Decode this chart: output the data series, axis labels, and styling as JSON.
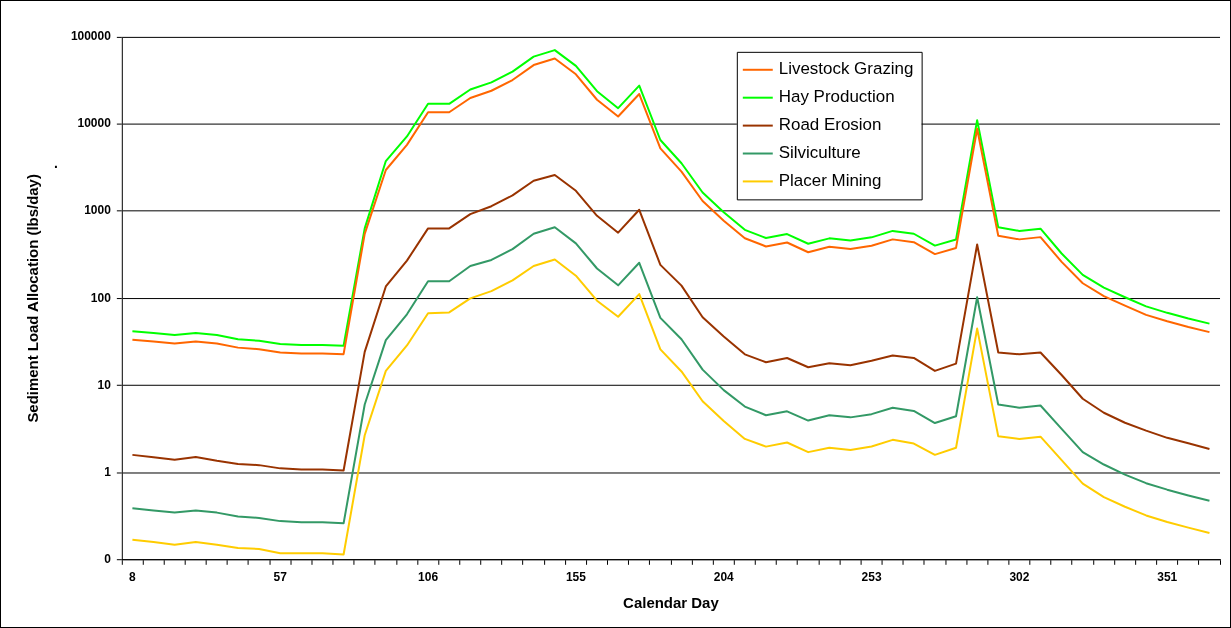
{
  "chart_data": {
    "type": "line",
    "xlabel": "Calendar Day",
    "ylabel": "Sediment Load Allocation (lbs/day)",
    "annotations": [
      "."
    ],
    "categories": [
      "8",
      null,
      null,
      null,
      null,
      null,
      null,
      "57",
      null,
      null,
      null,
      null,
      null,
      null,
      "106",
      null,
      null,
      null,
      null,
      null,
      null,
      "155",
      null,
      null,
      null,
      null,
      null,
      null,
      "204",
      null,
      null,
      null,
      null,
      null,
      null,
      "253",
      null,
      null,
      null,
      null,
      null,
      null,
      "302",
      null,
      null,
      null,
      null,
      null,
      null,
      "351",
      null,
      null
    ],
    "series": [
      {
        "name": "Livestock Grazing",
        "color": "#ff6600",
        "values": [
          33.6,
          32,
          30.4,
          32,
          30.4,
          27.2,
          26.1,
          23.9,
          23.3,
          23.3,
          22.9,
          550,
          2970,
          5770,
          13650,
          13650,
          19900,
          24100,
          32000,
          47500,
          56400,
          37200,
          19000,
          12200,
          22100,
          5250,
          2840,
          1310,
          778,
          489,
          394,
          437,
          338,
          390,
          368,
          401,
          475,
          441,
          322,
          379,
          8830,
          522,
          475,
          504,
          262,
          149,
          106,
          82.4,
          64.6,
          54.6,
          46.9,
          41
        ]
      },
      {
        "name": "Hay Production",
        "color": "#00ff00",
        "values": [
          42,
          40,
          38,
          40,
          38,
          34,
          32.6,
          29.9,
          29.1,
          29.1,
          28.6,
          635,
          3760,
          7210,
          17060,
          17060,
          24900,
          30100,
          40000,
          59400,
          70500,
          46500,
          23800,
          15200,
          27600,
          6560,
          3550,
          1640,
          973,
          611,
          492,
          546,
          423,
          488,
          460,
          501,
          594,
          551,
          403,
          474,
          11040,
          653,
          594,
          630,
          327,
          186,
          133,
          103,
          80.8,
          68.2,
          58.6,
          51.3
        ]
      },
      {
        "name": "Road Erosion",
        "color": "#993300",
        "values": [
          1.6,
          1.5,
          1.41,
          1.51,
          1.37,
          1.26,
          1.22,
          1.12,
          1.09,
          1.09,
          1.06,
          24.3,
          137,
          271,
          635,
          635,
          927,
          1140,
          1517,
          2235,
          2600,
          1714,
          885,
          567,
          1038,
          242,
          140,
          60.8,
          36.5,
          22.8,
          18.5,
          20.7,
          16.2,
          18,
          17.1,
          19.2,
          22.1,
          20.7,
          14.7,
          17.8,
          415,
          23.9,
          22.8,
          23.9,
          13.2,
          7.05,
          4.87,
          3.74,
          3.04,
          2.51,
          2.18,
          1.87
        ]
      },
      {
        "name": "Silviculture",
        "color": "#339966",
        "values": [
          0.39,
          0.369,
          0.348,
          0.369,
          0.348,
          0.314,
          0.302,
          0.278,
          0.27,
          0.27,
          0.262,
          6.06,
          33.2,
          65.6,
          157,
          157,
          235,
          276,
          367,
          551,
          653,
          427,
          220,
          141,
          256,
          59.7,
          33.9,
          15.2,
          8.85,
          5.73,
          4.56,
          5.06,
          3.96,
          4.56,
          4.31,
          4.69,
          5.56,
          5.11,
          3.71,
          4.44,
          103,
          6.06,
          5.56,
          5.89,
          3.18,
          1.72,
          1.24,
          0.949,
          0.757,
          0.638,
          0.548,
          0.476
        ]
      },
      {
        "name": "Placer Mining",
        "color": "#ffcc00",
        "values": [
          0.17,
          0.16,
          0.149,
          0.16,
          0.149,
          0.137,
          0.133,
          0.119,
          0.119,
          0.119,
          0.115,
          2.69,
          14.7,
          28.8,
          67.6,
          68.9,
          100,
          121,
          161,
          235,
          279,
          182,
          94,
          61.5,
          112,
          26,
          14.5,
          6.59,
          3.92,
          2.44,
          1.99,
          2.22,
          1.72,
          1.93,
          1.82,
          2,
          2.38,
          2.16,
          1.6,
          1.93,
          45,
          2.61,
          2.44,
          2.59,
          1.39,
          0.75,
          0.524,
          0.406,
          0.323,
          0.272,
          0.234,
          0.203
        ]
      }
    ],
    "ylim": [
      0.1,
      100000
    ],
    "yticks": [
      {
        "value": 0.1,
        "label": "0"
      },
      1,
      10,
      100,
      1000,
      10000,
      100000
    ],
    "log": true,
    "grid": "y",
    "legend": "top",
    "marker": "none",
    "line_style": "solid"
  }
}
